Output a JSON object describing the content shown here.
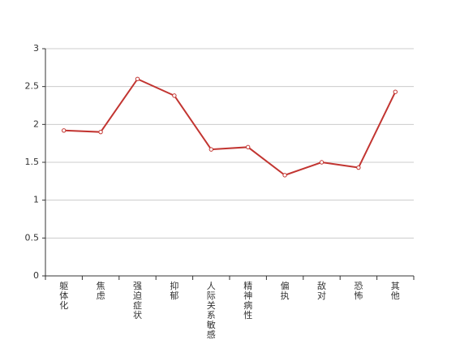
{
  "chart_data": {
    "type": "line",
    "categories": [
      "躯体化",
      "焦虑",
      "强迫症状",
      "抑郁",
      "人际关系敏感",
      "精神病性",
      "偏执",
      "敌对",
      "恐怖",
      "其他"
    ],
    "values": [
      1.92,
      1.9,
      2.6,
      2.38,
      1.67,
      1.7,
      1.33,
      1.5,
      1.43,
      2.43
    ],
    "color": "#c23531",
    "ylim": [
      0,
      3
    ],
    "yticks": [
      0,
      0.5,
      1,
      1.5,
      2,
      2.5,
      3
    ],
    "grid": true
  }
}
